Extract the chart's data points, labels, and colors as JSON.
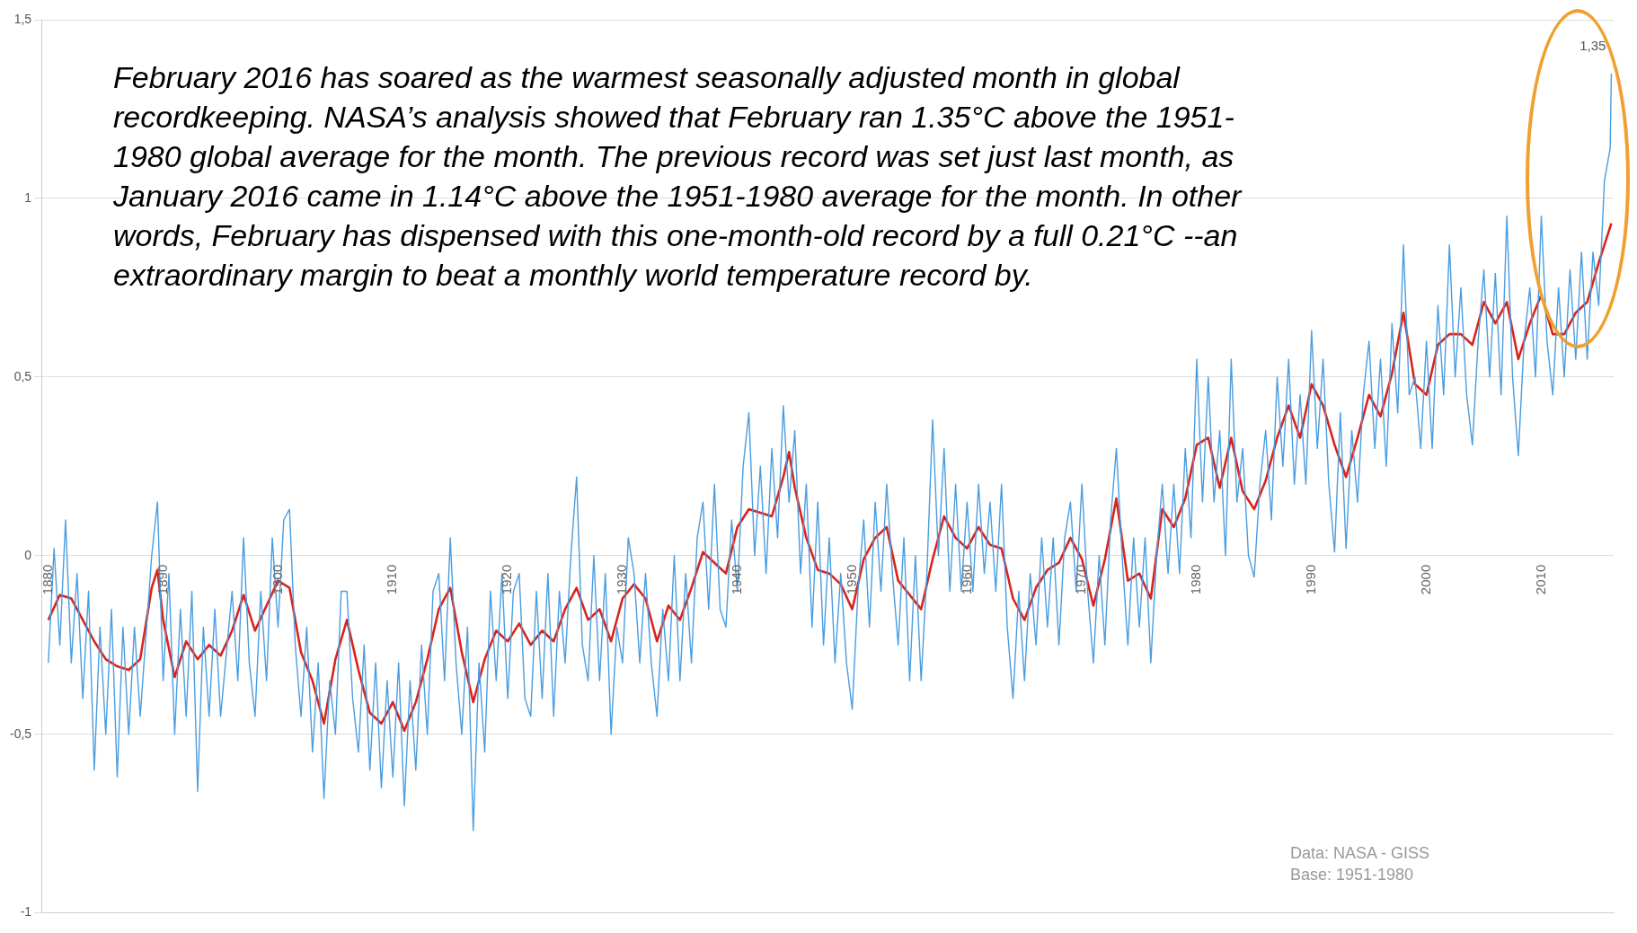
{
  "chart_data": {
    "type": "line",
    "annotations": [
      "February 2016 has soared as the warmest seasonally adjusted month in global recordkeeping. NASA’s analysis showed that February ran 1.35°C above the 1951-1980 global average for the month. The previous record was set just last month, as January 2016 came in 1.14°C above the 1951-1980 average for the month. In other words, February has dispensed with this one-month-old record by a full 0.21°C --an extraordinary margin to beat a monthly world temperature record by.",
      "Data: NASA - GISS",
      "Base: 1951-1980",
      {
        "text": "1,35",
        "x": 2016.1,
        "y": 1.35
      }
    ],
    "xlim": [
      1879.4,
      2016.3
    ],
    "xticks": [
      1880,
      1890,
      1900,
      1910,
      1920,
      1930,
      1940,
      1950,
      1960,
      1970,
      1980,
      1990,
      2000,
      2010
    ],
    "ylim": [
      -1,
      1.5
    ],
    "yticks": [
      -1,
      {
        "value": -0.5,
        "label": "-0,5"
      },
      0,
      {
        "value": 0.5,
        "label": "0,5"
      },
      1,
      {
        "value": 1.5,
        "label": "1,5"
      }
    ],
    "grid": "y",
    "legend": false,
    "marker": "none",
    "line_style": "solid",
    "series": [
      {
        "type": "line",
        "color": "#4a9de0",
        "x": [
          1880,
          1880.5,
          1881,
          1881.5,
          1882,
          1882.5,
          1883,
          1883.5,
          1884,
          1884.5,
          1885,
          1885.5,
          1886,
          1886.5,
          1887,
          1887.5,
          1888,
          1889,
          1889.5,
          1890,
          1890.5,
          1891,
          1891.5,
          1892,
          1892.5,
          1893,
          1893.5,
          1894,
          1894.5,
          1895,
          1896,
          1896.5,
          1897,
          1897.5,
          1898,
          1898.5,
          1899,
          1899.5,
          1900,
          1900.5,
          1901,
          1901.5,
          1902,
          1902.5,
          1903,
          1903.5,
          1904,
          1904.5,
          1905,
          1905.5,
          1906,
          1906.5,
          1907,
          1907.5,
          1908,
          1908.5,
          1909,
          1909.5,
          1910,
          1910.5,
          1911,
          1911.5,
          1912,
          1912.5,
          1913,
          1913.5,
          1914,
          1914.5,
          1915,
          1915.5,
          1916,
          1916.5,
          1917,
          1917.5,
          1918,
          1918.5,
          1919,
          1919.5,
          1920,
          1920.5,
          1921,
          1921.5,
          1922,
          1922.5,
          1923,
          1923.5,
          1924,
          1924.5,
          1925,
          1925.5,
          1926,
          1926.5,
          1927,
          1927.5,
          1928,
          1928.5,
          1929,
          1929.5,
          1930,
          1930.5,
          1931,
          1931.5,
          1932,
          1932.5,
          1933,
          1933.5,
          1934,
          1934.5,
          1935,
          1935.5,
          1936,
          1936.5,
          1937,
          1937.5,
          1938,
          1938.5,
          1939,
          1939.5,
          1940,
          1940.5,
          1941,
          1941.5,
          1942,
          1942.5,
          1943,
          1943.5,
          1944,
          1944.5,
          1945,
          1945.5,
          1946,
          1946.5,
          1947,
          1947.5,
          1948,
          1948.5,
          1949,
          1949.5,
          1950,
          1950.5,
          1951,
          1951.5,
          1952,
          1952.5,
          1953,
          1953.5,
          1954,
          1954.5,
          1955,
          1955.5,
          1956,
          1956.5,
          1957,
          1957.5,
          1958,
          1958.5,
          1959,
          1959.5,
          1960,
          1960.5,
          1961,
          1961.5,
          1962,
          1962.5,
          1963,
          1963.5,
          1964,
          1964.5,
          1965,
          1965.5,
          1966,
          1966.5,
          1967,
          1967.5,
          1968,
          1968.5,
          1969,
          1969.5,
          1970,
          1970.5,
          1971,
          1971.5,
          1972,
          1972.5,
          1973,
          1973.5,
          1974,
          1974.5,
          1975,
          1975.5,
          1976,
          1976.5,
          1977,
          1977.5,
          1978,
          1978.5,
          1979,
          1979.5,
          1980,
          1980.5,
          1981,
          1981.5,
          1982,
          1982.5,
          1983,
          1983.5,
          1984,
          1984.5,
          1985,
          1985.5,
          1986,
          1986.5,
          1987,
          1987.5,
          1988,
          1988.5,
          1989,
          1989.5,
          1990,
          1990.5,
          1991,
          1991.5,
          1992,
          1992.5,
          1993,
          1993.5,
          1994,
          1994.5,
          1995,
          1995.5,
          1996,
          1996.5,
          1997,
          1997.5,
          1998,
          1998.5,
          1999,
          1999.5,
          2000,
          2000.5,
          2001,
          2001.5,
          2002,
          2002.5,
          2003,
          2003.5,
          2004,
          2004.5,
          2005,
          2005.5,
          2006,
          2006.5,
          2007,
          2007.5,
          2008,
          2008.5,
          2009,
          2009.5,
          2010,
          2010.5,
          2011,
          2011.5,
          2012,
          2012.5,
          2013,
          2013.5,
          2014,
          2014.5,
          2015,
          2015.5,
          2016,
          2016.1
        ],
        "values": [
          -0.3,
          0.02,
          -0.25,
          0.1,
          -0.3,
          -0.05,
          -0.4,
          -0.1,
          -0.6,
          -0.2,
          -0.5,
          -0.15,
          -0.62,
          -0.2,
          -0.5,
          -0.2,
          -0.45,
          0,
          0.15,
          -0.35,
          -0.05,
          -0.5,
          -0.15,
          -0.45,
          -0.1,
          -0.66,
          -0.2,
          -0.45,
          -0.15,
          -0.45,
          -0.1,
          -0.35,
          0.05,
          -0.3,
          -0.45,
          -0.1,
          -0.35,
          0.05,
          -0.2,
          0.1,
          0.13,
          -0.25,
          -0.45,
          -0.2,
          -0.55,
          -0.3,
          -0.68,
          -0.35,
          -0.5,
          -0.1,
          -0.1,
          -0.4,
          -0.55,
          -0.25,
          -0.6,
          -0.3,
          -0.65,
          -0.35,
          -0.62,
          -0.3,
          -0.7,
          -0.35,
          -0.6,
          -0.25,
          -0.5,
          -0.1,
          -0.05,
          -0.35,
          0.05,
          -0.3,
          -0.5,
          -0.2,
          -0.77,
          -0.3,
          -0.55,
          -0.1,
          -0.35,
          -0.05,
          -0.4,
          -0.1,
          -0.05,
          -0.4,
          -0.45,
          -0.1,
          -0.4,
          -0.05,
          -0.45,
          -0.1,
          -0.3,
          0,
          0.22,
          -0.25,
          -0.35,
          0,
          -0.35,
          -0.05,
          -0.5,
          -0.2,
          -0.3,
          0.05,
          -0.05,
          -0.3,
          -0.05,
          -0.3,
          -0.45,
          -0.15,
          -0.35,
          0,
          -0.35,
          -0.05,
          -0.3,
          0.05,
          0.15,
          -0.15,
          0.2,
          -0.15,
          -0.2,
          0.1,
          -0.1,
          0.25,
          0.4,
          0,
          0.25,
          -0.05,
          0.3,
          0.05,
          0.42,
          0.15,
          0.35,
          -0.05,
          0.2,
          -0.2,
          0.15,
          -0.25,
          0.05,
          -0.3,
          -0.05,
          -0.3,
          -0.43,
          -0.1,
          0.1,
          -0.2,
          0.15,
          -0.1,
          0.2,
          -0.05,
          -0.25,
          0.05,
          -0.35,
          0,
          -0.35,
          -0.05,
          0.38,
          0,
          0.3,
          -0.1,
          0.2,
          -0.1,
          0.15,
          -0.1,
          0.2,
          -0.05,
          0.15,
          -0.1,
          0.2,
          -0.2,
          -0.4,
          -0.1,
          -0.35,
          -0.05,
          -0.25,
          0.05,
          -0.2,
          0.05,
          -0.25,
          0.05,
          0.15,
          -0.1,
          0.2,
          -0.1,
          -0.3,
          0,
          -0.25,
          0.1,
          0.3,
          0,
          -0.25,
          0.05,
          -0.2,
          0.05,
          -0.3,
          0,
          0.2,
          -0.05,
          0.2,
          -0.05,
          0.3,
          0.05,
          0.55,
          0.15,
          0.5,
          0.15,
          0.35,
          0,
          0.55,
          0.15,
          0.3,
          0,
          -0.06,
          0.2,
          0.35,
          0.1,
          0.5,
          0.25,
          0.55,
          0.2,
          0.45,
          0.2,
          0.63,
          0.3,
          0.55,
          0.2,
          0.01,
          0.4,
          0.02,
          0.35,
          0.15,
          0.45,
          0.6,
          0.3,
          0.55,
          0.25,
          0.65,
          0.4,
          0.87,
          0.45,
          0.5,
          0.3,
          0.6,
          0.3,
          0.7,
          0.45,
          0.87,
          0.5,
          0.75,
          0.45,
          0.31,
          0.6,
          0.8,
          0.5,
          0.79,
          0.45,
          0.95,
          0.5,
          0.28,
          0.6,
          0.75,
          0.5,
          0.95,
          0.6,
          0.45,
          0.75,
          0.5,
          0.8,
          0.55,
          0.85,
          0.55,
          0.85,
          0.7,
          1.05,
          1.14,
          1.35
        ]
      },
      {
        "type": "line",
        "color": "#d9241c",
        "x": [
          1880,
          1881,
          1882,
          1883,
          1884,
          1885,
          1886,
          1887,
          1888,
          1889,
          1889.5,
          1890,
          1891,
          1892,
          1893,
          1894,
          1895,
          1896,
          1897,
          1898,
          1899,
          1900,
          1901,
          1902,
          1903,
          1904,
          1905,
          1906,
          1907,
          1908,
          1909,
          1910,
          1911,
          1912,
          1913,
          1914,
          1915,
          1916,
          1917,
          1918,
          1919,
          1920,
          1921,
          1922,
          1923,
          1924,
          1925,
          1926,
          1927,
          1928,
          1929,
          1930,
          1931,
          1932,
          1933,
          1934,
          1935,
          1936,
          1937,
          1938,
          1939,
          1940,
          1941,
          1942,
          1943,
          1944,
          1944.5,
          1945,
          1946,
          1947,
          1948,
          1949,
          1950,
          1951,
          1952,
          1953,
          1954,
          1955,
          1956,
          1957,
          1958,
          1959,
          1960,
          1961,
          1962,
          1963,
          1964,
          1965,
          1966,
          1967,
          1968,
          1969,
          1970,
          1971,
          1972,
          1973,
          1974,
          1975,
          1976,
          1977,
          1978,
          1979,
          1980,
          1981,
          1982,
          1983,
          1984,
          1985,
          1986,
          1987,
          1988,
          1989,
          1990,
          1991,
          1992,
          1993,
          1994,
          1995,
          1996,
          1997,
          1998,
          1999,
          2000,
          2001,
          2002,
          2003,
          2004,
          2005,
          2006,
          2007,
          2008,
          2009,
          2010,
          2011,
          2012,
          2013,
          2014,
          2015,
          2016.1
        ],
        "values": [
          -0.18,
          -0.11,
          -0.12,
          -0.18,
          -0.24,
          -0.29,
          -0.31,
          -0.32,
          -0.29,
          -0.09,
          -0.04,
          -0.18,
          -0.34,
          -0.24,
          -0.29,
          -0.25,
          -0.28,
          -0.21,
          -0.11,
          -0.21,
          -0.14,
          -0.07,
          -0.09,
          -0.27,
          -0.35,
          -0.47,
          -0.29,
          -0.18,
          -0.32,
          -0.44,
          -0.47,
          -0.41,
          -0.49,
          -0.41,
          -0.29,
          -0.15,
          -0.09,
          -0.27,
          -0.41,
          -0.29,
          -0.21,
          -0.24,
          -0.19,
          -0.25,
          -0.21,
          -0.24,
          -0.15,
          -0.09,
          -0.18,
          -0.15,
          -0.24,
          -0.12,
          -0.08,
          -0.12,
          -0.24,
          -0.14,
          -0.18,
          -0.09,
          0.01,
          -0.02,
          -0.05,
          0.08,
          0.13,
          0.12,
          0.11,
          0.22,
          0.29,
          0.19,
          0.05,
          -0.04,
          -0.05,
          -0.08,
          -0.15,
          -0.01,
          0.05,
          0.08,
          -0.07,
          -0.11,
          -0.15,
          -0.01,
          0.11,
          0.05,
          0.02,
          0.08,
          0.03,
          0.02,
          -0.12,
          -0.18,
          -0.09,
          -0.04,
          -0.02,
          0.05,
          -0.01,
          -0.14,
          -0.01,
          0.16,
          -0.07,
          -0.05,
          -0.12,
          0.13,
          0.08,
          0.16,
          0.31,
          0.33,
          0.19,
          0.33,
          0.18,
          0.13,
          0.21,
          0.33,
          0.42,
          0.33,
          0.48,
          0.42,
          0.31,
          0.22,
          0.33,
          0.45,
          0.39,
          0.51,
          0.68,
          0.48,
          0.45,
          0.59,
          0.62,
          0.62,
          0.59,
          0.71,
          0.65,
          0.71,
          0.55,
          0.65,
          0.73,
          0.62,
          0.62,
          0.68,
          0.71,
          0.82,
          0.93
        ]
      }
    ]
  }
}
